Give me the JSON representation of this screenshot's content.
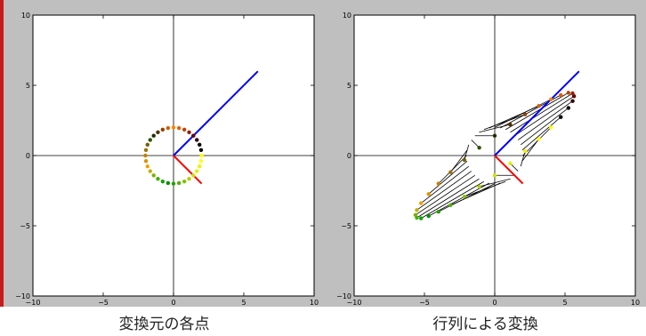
{
  "chart_data": [
    {
      "type": "scatter",
      "title": "",
      "xlim": [
        -10,
        10
      ],
      "ylim": [
        -10,
        10
      ],
      "x_ticks": [
        -10,
        -5,
        0,
        5,
        10
      ],
      "y_ticks": [
        -10,
        -5,
        0,
        5,
        10
      ],
      "grid": false,
      "axis_lines_through_origin": true,
      "points": [
        {
          "x": 2.0,
          "y": 0.0,
          "color": "#ffff00"
        },
        {
          "x": 1.96,
          "y": 0.39,
          "color": "#000000"
        },
        {
          "x": 1.85,
          "y": 0.77,
          "color": "#000000"
        },
        {
          "x": 1.66,
          "y": 1.11,
          "color": "#300000"
        },
        {
          "x": 1.41,
          "y": 1.41,
          "color": "#600000"
        },
        {
          "x": 1.11,
          "y": 1.66,
          "color": "#902000"
        },
        {
          "x": 0.77,
          "y": 1.85,
          "color": "#c04000"
        },
        {
          "x": 0.39,
          "y": 1.96,
          "color": "#e06000"
        },
        {
          "x": 0.0,
          "y": 2.0,
          "color": "#ff8000"
        },
        {
          "x": -0.39,
          "y": 1.96,
          "color": "#d06000"
        },
        {
          "x": -0.77,
          "y": 1.85,
          "color": "#904000"
        },
        {
          "x": -1.11,
          "y": 1.66,
          "color": "#503000"
        },
        {
          "x": -1.41,
          "y": 1.41,
          "color": "#203000"
        },
        {
          "x": -1.66,
          "y": 1.11,
          "color": "#305000"
        },
        {
          "x": -1.85,
          "y": 0.77,
          "color": "#706000"
        },
        {
          "x": -1.96,
          "y": 0.39,
          "color": "#a07000"
        },
        {
          "x": -2.0,
          "y": 0.0,
          "color": "#c08000"
        },
        {
          "x": -1.96,
          "y": -0.39,
          "color": "#e09000"
        },
        {
          "x": -1.85,
          "y": -0.77,
          "color": "#f0a000"
        },
        {
          "x": -1.66,
          "y": -1.11,
          "color": "#c0b000"
        },
        {
          "x": -1.41,
          "y": -1.41,
          "color": "#80b000"
        },
        {
          "x": -1.11,
          "y": -1.66,
          "color": "#40b000"
        },
        {
          "x": -0.77,
          "y": -1.85,
          "color": "#10a000"
        },
        {
          "x": -0.39,
          "y": -1.96,
          "color": "#009000"
        },
        {
          "x": 0.0,
          "y": -2.0,
          "color": "#20a000"
        },
        {
          "x": 0.39,
          "y": -1.96,
          "color": "#50b000"
        },
        {
          "x": 0.77,
          "y": -1.85,
          "color": "#80c000"
        },
        {
          "x": 1.11,
          "y": -1.66,
          "color": "#b0d000"
        },
        {
          "x": 1.41,
          "y": -1.41,
          "color": "#d0e000"
        },
        {
          "x": 1.66,
          "y": -1.11,
          "color": "#e0f000"
        },
        {
          "x": 1.85,
          "y": -0.77,
          "color": "#f0f000"
        },
        {
          "x": 1.96,
          "y": -0.39,
          "color": "#ffff00"
        }
      ],
      "vectors": [
        {
          "x0": 0,
          "y0": 0,
          "x1": 6,
          "y1": 6,
          "color": "#0000ff"
        },
        {
          "x0": 0,
          "y0": 0,
          "x1": 2,
          "y1": -2,
          "color": "#ff0000"
        }
      ]
    },
    {
      "type": "scatter",
      "title": "",
      "xlim": [
        -10,
        10
      ],
      "ylim": [
        -10,
        10
      ],
      "x_ticks": [
        -10,
        -5,
        0,
        5,
        10
      ],
      "y_ticks": [
        -10,
        -5,
        0,
        5,
        10
      ],
      "grid": false,
      "axis_lines_through_origin": true,
      "matrix": [
        [
          2,
          2
        ],
        [
          1,
          2
        ]
      ],
      "connect_origin_to_image": true,
      "vectors": [
        {
          "x0": 0,
          "y0": 0,
          "x1": 6,
          "y1": 6,
          "color": "#0000ff"
        },
        {
          "x0": 0,
          "y0": 0,
          "x1": 2,
          "y1": -2,
          "color": "#ff0000"
        }
      ]
    }
  ],
  "captions": {
    "left": "変換元の各点",
    "right": "行列による変換"
  }
}
